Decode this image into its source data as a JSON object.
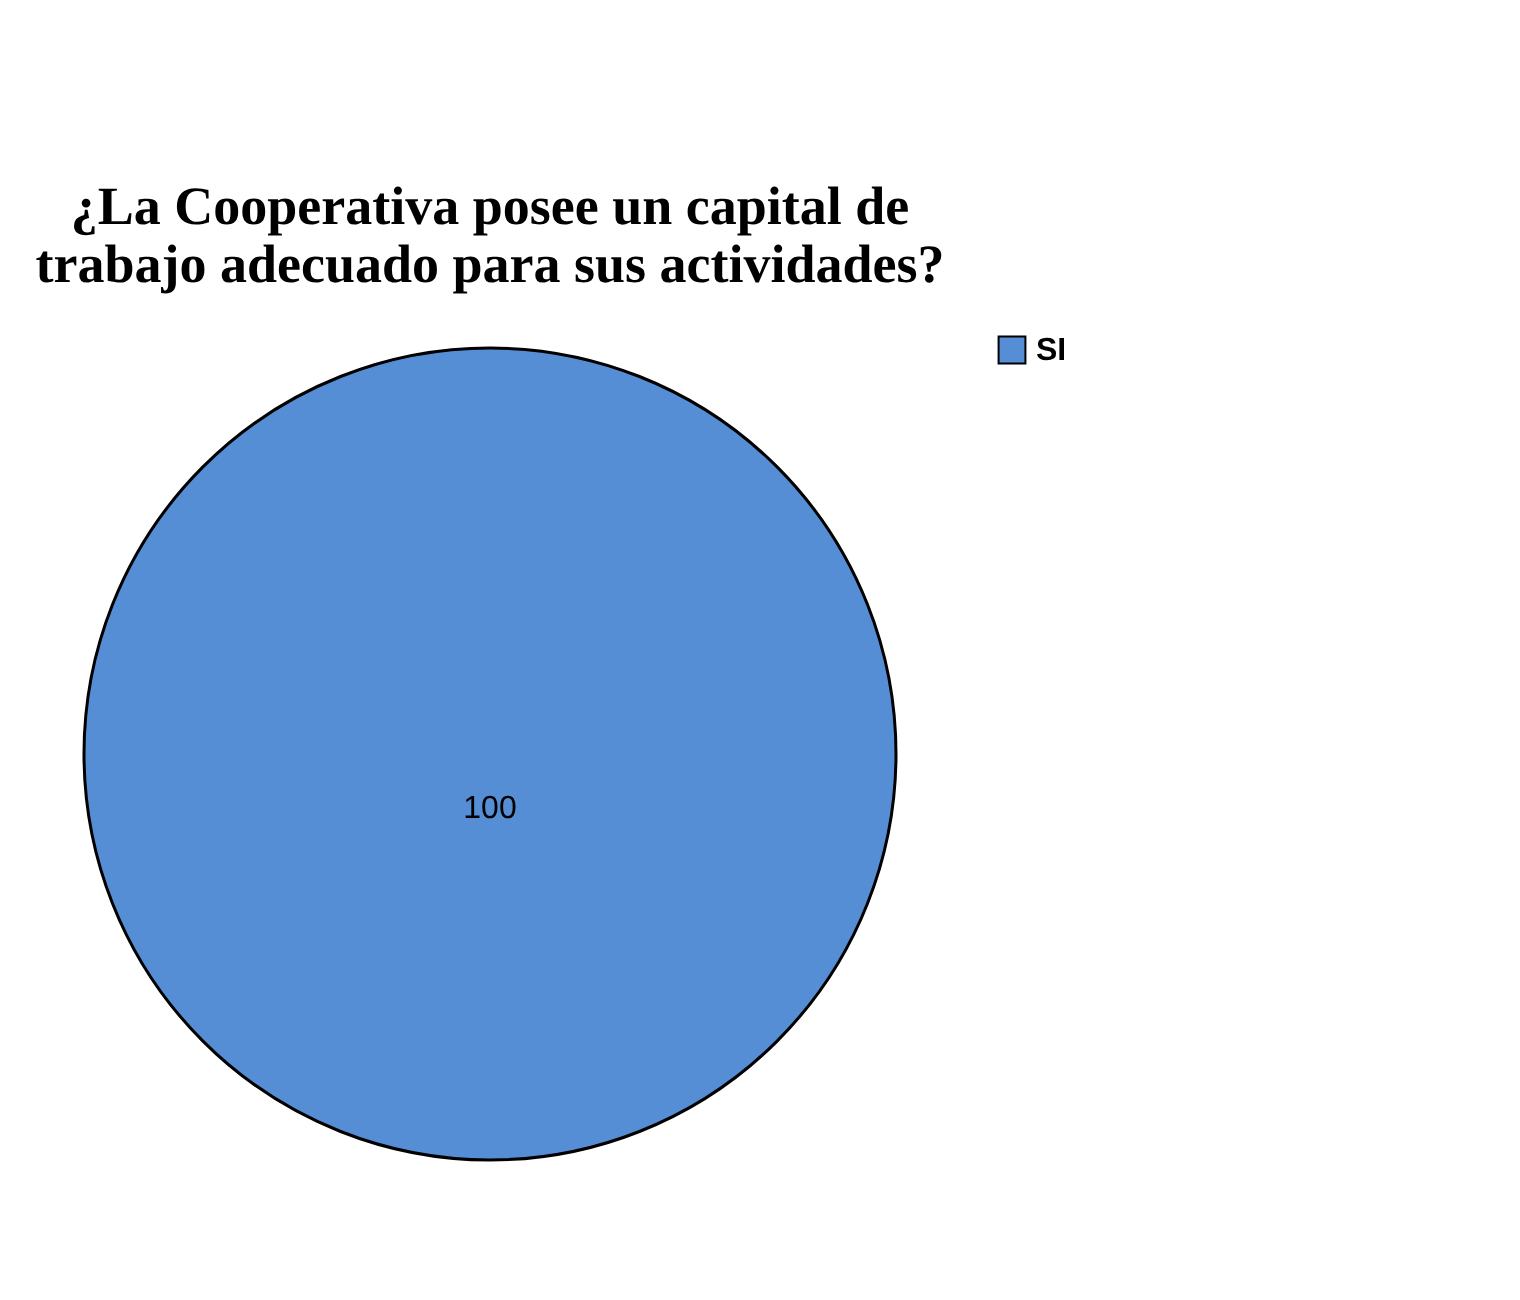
{
  "chart_data": {
    "type": "pie",
    "title": "¿La Cooperativa posee un capital de\ntrabajo adecuado para sus actividades?",
    "categories": [
      "SI"
    ],
    "values": [
      100
    ],
    "colors": [
      "#558ed5"
    ],
    "data_labels": true,
    "legend": "right"
  }
}
